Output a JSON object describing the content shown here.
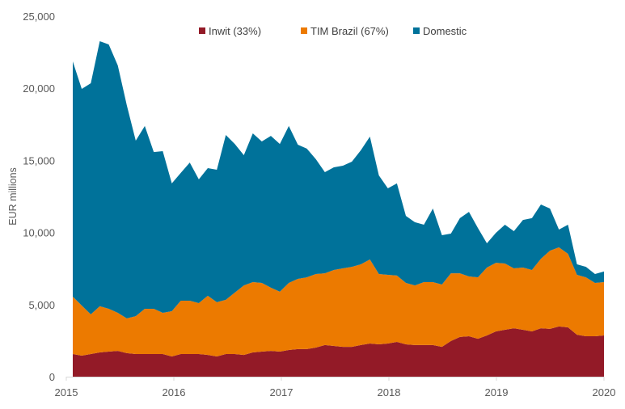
{
  "chart_data": {
    "type": "area",
    "stacked": true,
    "title": "",
    "xlabel": "",
    "ylabel": "EUR millions",
    "xlim": [
      2015,
      2020
    ],
    "ylim": [
      0,
      25000
    ],
    "x_ticks": [
      2015,
      2016,
      2017,
      2018,
      2019,
      2020
    ],
    "x_tick_labels": [
      "2015",
      "2016",
      "2017",
      "2018",
      "2019",
      "2020"
    ],
    "y_ticks": [
      0,
      5000,
      10000,
      15000,
      20000,
      25000
    ],
    "y_tick_labels": [
      "0",
      "5,000",
      "10,000",
      "15,000",
      "20,000",
      "25,000"
    ],
    "grid": false,
    "legend_position": "top-center",
    "x_start": 2015.06,
    "x_end": 2020.0,
    "series": [
      {
        "name": "Inwit (33%)",
        "color": "#931A27",
        "values": [
          1570,
          1460,
          1570,
          1680,
          1740,
          1790,
          1630,
          1570,
          1570,
          1570,
          1570,
          1400,
          1570,
          1570,
          1570,
          1510,
          1400,
          1570,
          1570,
          1510,
          1680,
          1740,
          1790,
          1740,
          1850,
          1910,
          1910,
          2020,
          2190,
          2130,
          2070,
          2070,
          2190,
          2300,
          2240,
          2300,
          2410,
          2240,
          2190,
          2190,
          2190,
          2070,
          2470,
          2750,
          2800,
          2630,
          2860,
          3140,
          3250,
          3360,
          3250,
          3140,
          3360,
          3310,
          3480,
          3420,
          2910,
          2800,
          2800,
          2860
        ]
      },
      {
        "name": "TIM Brazil (67%)",
        "color": "#EC7A00",
        "values": [
          3980,
          3470,
          2750,
          3200,
          2970,
          2640,
          2410,
          2630,
          3140,
          3140,
          2860,
          3140,
          3700,
          3700,
          3530,
          4100,
          3760,
          3760,
          4260,
          4820,
          4880,
          4760,
          4380,
          4150,
          4650,
          4870,
          4980,
          5100,
          4980,
          5270,
          5440,
          5550,
          5600,
          5830,
          4880,
          4760,
          4600,
          4260,
          4140,
          4370,
          4370,
          4320,
          4700,
          4420,
          4150,
          4260,
          4710,
          4760,
          4600,
          4150,
          4320,
          4260,
          4820,
          5430,
          5490,
          5100,
          4150,
          4090,
          3700,
          3700
        ]
      },
      {
        "name": "Domestic",
        "color": "#00729A",
        "values": [
          16310,
          15025,
          16030,
          18380,
          18330,
          17150,
          14790,
          12170,
          12670,
          10870,
          11210,
          8860,
          8860,
          9580,
          8580,
          8850,
          9190,
          11430,
          10310,
          9030,
          10310,
          9810,
          10530,
          10250,
          10880,
          9310,
          8920,
          7960,
          7010,
          7120,
          7120,
          7290,
          7910,
          8520,
          6840,
          6000,
          6390,
          4650,
          4380,
          3980,
          5100,
          3420,
          2750,
          3820,
          4480,
          3420,
          1680,
          2080,
          2690,
          2580,
          3300,
          3590,
          3760,
          2920,
          1230,
          2020,
          730,
          730,
          620,
          730
        ]
      }
    ]
  }
}
